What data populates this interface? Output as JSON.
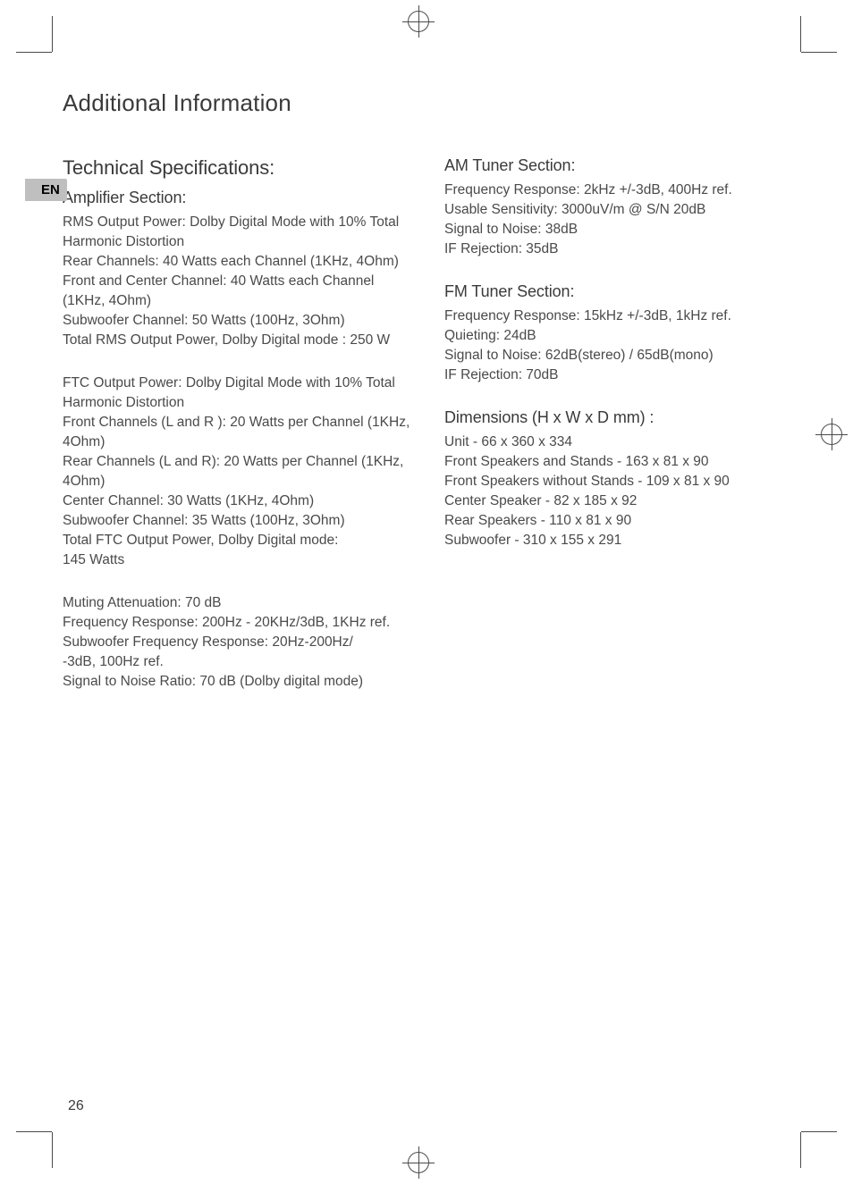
{
  "lang_tag": "EN",
  "title": "Additional Information",
  "page_number": "26",
  "left": {
    "section_title": "Technical Specifications:",
    "amp": {
      "heading": "Amplifier Section:",
      "para1": "RMS Output Power: Dolby Digital Mode with 10% Total Harmonic Distortion\nRear Channels: 40 Watts each Channel (1KHz, 4Ohm)\nFront and Center Channel: 40 Watts each Channel (1KHz, 4Ohm)\nSubwoofer Channel: 50 Watts  (100Hz, 3Ohm)\nTotal RMS Output Power, Dolby Digital mode : 250 W",
      "para2": "FTC Output Power: Dolby Digital Mode with 10% Total Harmonic Distortion\nFront Channels (L and R ): 20 Watts per Channel (1KHz, 4Ohm)\nRear Channels (L and R): 20 Watts per Channel (1KHz, 4Ohm)\nCenter Channel: 30 Watts  (1KHz, 4Ohm)\nSubwoofer Channel: 35 Watts  (100Hz, 3Ohm)\nTotal FTC Output Power, Dolby Digital mode:\n145 Watts",
      "para3": "Muting Attenuation: 70 dB\nFrequency Response: 200Hz - 20KHz/3dB, 1KHz ref.\nSubwoofer Frequency Response: 20Hz-200Hz/\n-3dB, 100Hz ref.\nSignal to Noise Ratio: 70 dB  (Dolby digital mode)"
    }
  },
  "right": {
    "am": {
      "heading": "AM Tuner Section:",
      "body": "Frequency Response: 2kHz +/-3dB, 400Hz ref.\nUsable Sensitivity: 3000uV/m @ S/N 20dB\nSignal to Noise: 38dB\nIF Rejection: 35dB"
    },
    "fm": {
      "heading": "FM Tuner Section:",
      "body": "Frequency Response: 15kHz +/-3dB, 1kHz ref.\nQuieting:  24dB\nSignal to Noise: 62dB(stereo) / 65dB(mono)\nIF Rejection: 70dB"
    },
    "dim": {
      "heading": "Dimensions (H x W x D mm) :",
      "body": "Unit -  66 x 360 x 334\nFront Speakers and Stands - 163 x 81 x 90\nFront Speakers without Stands - 109 x 81 x 90\nCenter Speaker - 82 x 185 x 92\nRear Speakers - 110 x 81 x 90\nSubwoofer - 310 x 155 x 291"
    }
  }
}
